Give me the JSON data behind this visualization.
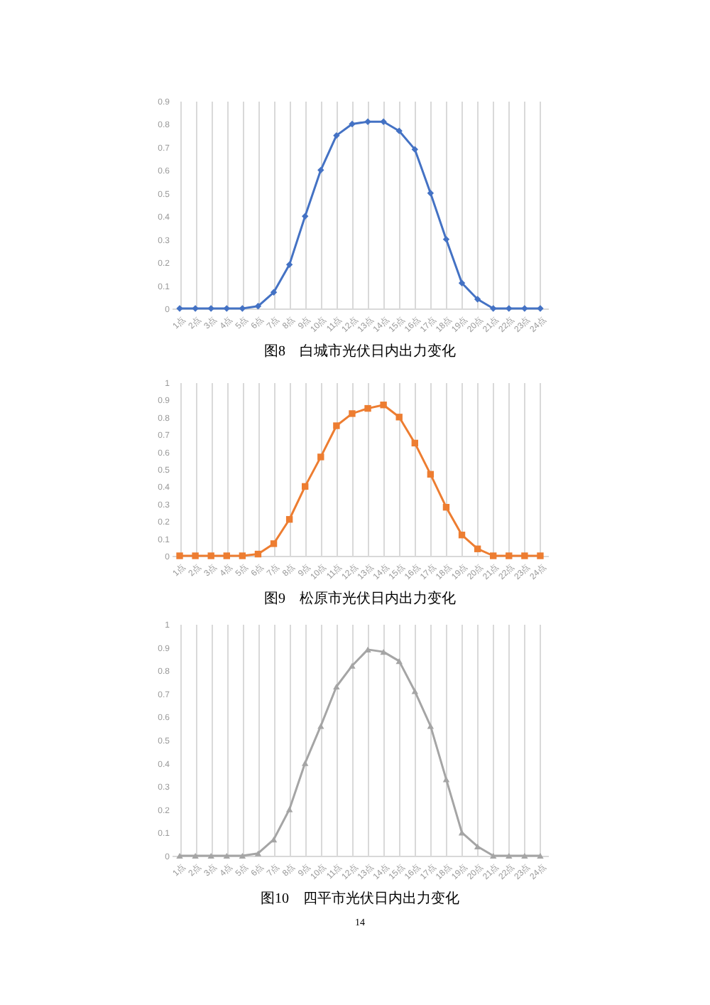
{
  "chart_data": [
    {
      "type": "line",
      "title": "图8　白城市光伏日内出力变化",
      "categories": [
        "1点",
        "2点",
        "3点",
        "4点",
        "5点",
        "6点",
        "7点",
        "8点",
        "9点",
        "10点",
        "11点",
        "12点",
        "13点",
        "14点",
        "15点",
        "16点",
        "17点",
        "18点",
        "19点",
        "20点",
        "21点",
        "22点",
        "23点",
        "24点"
      ],
      "series": [
        {
          "color": "#4472c4",
          "values": [
            0,
            0,
            0,
            0,
            0,
            0.01,
            0.07,
            0.19,
            0.4,
            0.6,
            0.75,
            0.8,
            0.81,
            0.81,
            0.77,
            0.69,
            0.5,
            0.3,
            0.11,
            0.04,
            0,
            0,
            0,
            0
          ]
        }
      ],
      "ylim": [
        0,
        0.9
      ],
      "yticks": [
        0,
        0.1,
        0.2,
        0.3,
        0.4,
        0.5,
        0.6,
        0.7,
        0.8,
        0.9
      ],
      "grid": "x",
      "marker": "diamond",
      "legend": false
    },
    {
      "type": "line",
      "title": "图9　松原市光伏日内出力变化",
      "categories": [
        "1点",
        "2点",
        "3点",
        "4点",
        "5点",
        "6点",
        "7点",
        "8点",
        "9点",
        "10点",
        "11点",
        "12点",
        "13点",
        "14点",
        "15点",
        "16点",
        "17点",
        "18点",
        "19点",
        "20点",
        "21点",
        "22点",
        "23点",
        "24点"
      ],
      "series": [
        {
          "color": "#ed7d31",
          "values": [
            0,
            0,
            0,
            0,
            0,
            0.01,
            0.07,
            0.21,
            0.4,
            0.57,
            0.75,
            0.82,
            0.85,
            0.87,
            0.8,
            0.65,
            0.47,
            0.28,
            0.12,
            0.04,
            0,
            0,
            0,
            0
          ]
        }
      ],
      "ylim": [
        0,
        1
      ],
      "yticks": [
        0,
        0.1,
        0.2,
        0.3,
        0.4,
        0.5,
        0.6,
        0.7,
        0.8,
        0.9,
        1
      ],
      "grid": "x",
      "marker": "square",
      "legend": false
    },
    {
      "type": "line",
      "title": "图10　四平市光伏日内出力变化",
      "annotations": [
        "14"
      ],
      "categories": [
        "1点",
        "2点",
        "3点",
        "4点",
        "5点",
        "6点",
        "7点",
        "8点",
        "9点",
        "10点",
        "11点",
        "12点",
        "13点",
        "14点",
        "15点",
        "16点",
        "17点",
        "18点",
        "19点",
        "20点",
        "21点",
        "22点",
        "23点",
        "24点"
      ],
      "series": [
        {
          "color": "#a5a5a5",
          "values": [
            0,
            0,
            0,
            0,
            0,
            0.01,
            0.07,
            0.2,
            0.4,
            0.56,
            0.73,
            0.82,
            0.89,
            0.88,
            0.84,
            0.71,
            0.56,
            0.33,
            0.1,
            0.04,
            0,
            0,
            0,
            0
          ]
        }
      ],
      "ylim": [
        0,
        1
      ],
      "yticks": [
        0,
        0.1,
        0.2,
        0.3,
        0.4,
        0.5,
        0.6,
        0.7,
        0.8,
        0.9,
        1
      ],
      "grid": "x",
      "marker": "triangle",
      "legend": false
    }
  ]
}
